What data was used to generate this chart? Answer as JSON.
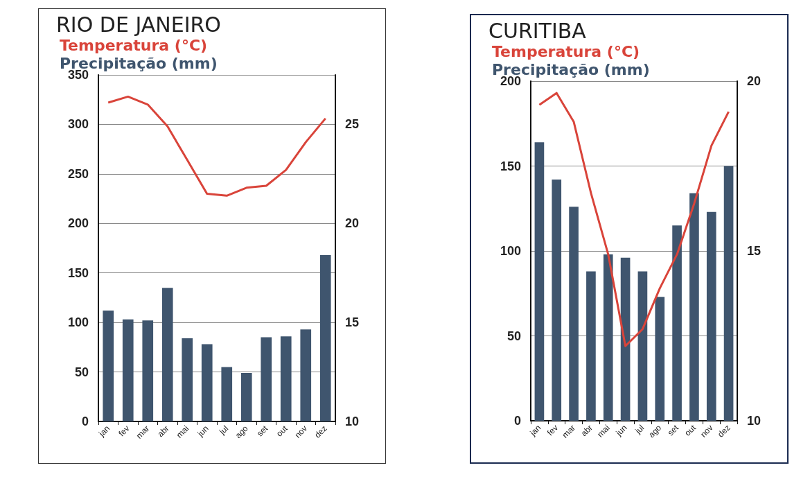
{
  "chart_data": [
    {
      "type": "bar",
      "title": "RIO DE JANEIRO",
      "categories": [
        "jan",
        "fev",
        "mar",
        "abr",
        "mai",
        "jun",
        "jul",
        "ago",
        "set",
        "out",
        "nov",
        "dez"
      ],
      "series": [
        {
          "name": "Temperatura (°C)",
          "type": "line",
          "axis": "y2",
          "color": "#d9443a",
          "values": [
            26.1,
            26.4,
            26.0,
            24.9,
            23.2,
            21.5,
            21.4,
            21.8,
            21.9,
            22.7,
            24.1,
            25.3
          ]
        },
        {
          "name": "Precipitação (mm)",
          "color": "#3f556e",
          "values": [
            112,
            103,
            102,
            135,
            84,
            78,
            55,
            49,
            85,
            86,
            93,
            168
          ]
        }
      ],
      "ylim": [
        0,
        350
      ],
      "yticks": [
        0,
        50,
        100,
        150,
        200,
        250,
        300,
        350
      ],
      "y2lim": [
        10,
        27.5
      ],
      "y2ticks": [
        10,
        15,
        20,
        25
      ],
      "grid": "y",
      "legend": "top left",
      "marker": "none"
    },
    {
      "type": "bar",
      "title": "CURITIBA",
      "categories": [
        "jan",
        "fev",
        "mar",
        "abr",
        "mai",
        "jun",
        "jul",
        "ago",
        "set",
        "out",
        "nov",
        "dez"
      ],
      "series": [
        {
          "name": "Temperatura (°C)",
          "type": "line",
          "axis": "y2",
          "color": "#d9443a",
          "values": [
            19.3,
            19.65,
            18.8,
            16.7,
            14.9,
            12.2,
            12.7,
            13.9,
            14.9,
            16.4,
            18.1,
            19.1
          ]
        },
        {
          "name": "Precipitação (mm)",
          "color": "#3f556e",
          "values": [
            164,
            142,
            126,
            88,
            98,
            96,
            88,
            73,
            115,
            134,
            123,
            150
          ]
        }
      ],
      "ylim": [
        0,
        200
      ],
      "yticks": [
        0,
        50,
        100,
        150,
        200
      ],
      "y2lim": [
        10,
        20
      ],
      "y2ticks": [
        10,
        15,
        20
      ],
      "grid": "y",
      "legend": "top left",
      "marker": "none"
    }
  ]
}
